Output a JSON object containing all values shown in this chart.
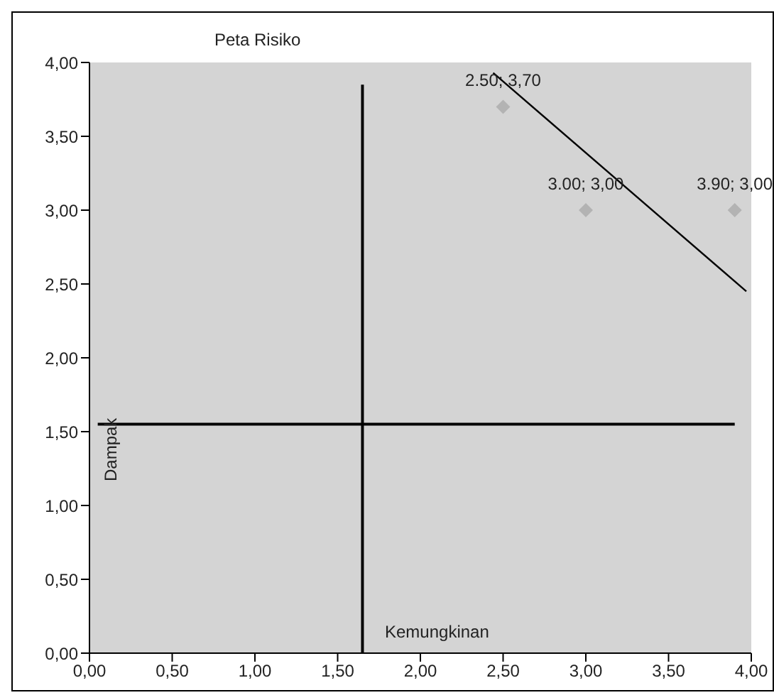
{
  "chart_data": {
    "type": "scatter",
    "title": "Peta Risiko",
    "xlabel": "Kemungkinan",
    "ylabel": "Dampak",
    "xlim": [
      0,
      4
    ],
    "xticks": [
      {
        "value": 0,
        "label": "0,00"
      },
      {
        "value": 0.5,
        "label": "0,50"
      },
      {
        "value": 1,
        "label": "1,00"
      },
      {
        "value": 1.5,
        "label": "1,50"
      },
      {
        "value": 2,
        "label": "2,00"
      },
      {
        "value": 2.5,
        "label": "2,50"
      },
      {
        "value": 3,
        "label": "3,00"
      },
      {
        "value": 3.5,
        "label": "3,50"
      },
      {
        "value": 4,
        "label": "4,00"
      }
    ],
    "ylim": [
      0,
      4
    ],
    "yticks": [
      {
        "value": 0,
        "label": "0,00"
      },
      {
        "value": 0.5,
        "label": "0,50"
      },
      {
        "value": 1,
        "label": "1,00"
      },
      {
        "value": 1.5,
        "label": "1,50"
      },
      {
        "value": 2,
        "label": "2,00"
      },
      {
        "value": 2.5,
        "label": "2,50"
      },
      {
        "value": 3,
        "label": "3,00"
      },
      {
        "value": 3.5,
        "label": "3,50"
      },
      {
        "value": 4,
        "label": "4,00"
      }
    ],
    "grid": false,
    "series": [
      {
        "marker": "diamond",
        "color": "#b3b3b3",
        "x": [
          2.5,
          3,
          3.9
        ],
        "values": [
          3.7,
          3,
          3
        ],
        "value_labels": [
          "2.50; 3,70",
          "3.00; 3,00",
          "3.90; 3,00"
        ]
      },
      {
        "type": "line",
        "color": "#000000",
        "x": [
          1.65,
          1.65
        ],
        "values": [
          0,
          3.85
        ],
        "line_style": "solid"
      },
      {
        "type": "line",
        "color": "#000000",
        "x": [
          0.05,
          3.9
        ],
        "values": [
          1.55,
          1.55
        ],
        "line_style": "solid"
      },
      {
        "type": "line",
        "color": "#000000",
        "x": [
          2.44,
          3.97
        ],
        "values": [
          3.93,
          2.45
        ],
        "line_style": "solid"
      }
    ]
  }
}
